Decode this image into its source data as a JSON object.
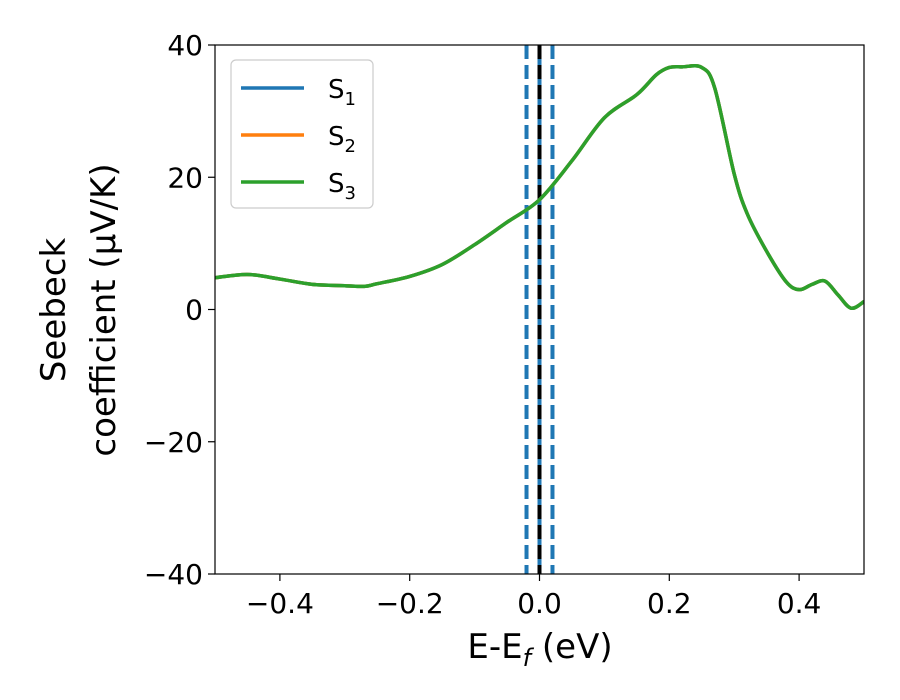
{
  "chart_data": {
    "type": "line",
    "xlabel_main": "E-E",
    "xlabel_sub": "f",
    "xlabel_unit": " (eV)",
    "ylabel_line1": "Seebeck",
    "ylabel_line2": "coefficient  (μV/K)",
    "xlim": [
      -0.5,
      0.5
    ],
    "ylim": [
      -40,
      40
    ],
    "x_ticks": [
      -0.4,
      -0.2,
      0.0,
      0.2,
      0.4
    ],
    "x_tick_labels": [
      "−0.4",
      "−0.2",
      "0.0",
      "0.2",
      "0.4"
    ],
    "y_ticks": [
      -40,
      -20,
      0,
      20,
      40
    ],
    "y_tick_labels": [
      "−40",
      "−20",
      "0",
      "20",
      "40"
    ],
    "grid": false,
    "legend_position": "top-left",
    "vertical_lines": [
      {
        "x": -0.02,
        "style": "dashed",
        "color": "#1f77b4"
      },
      {
        "x": 0.02,
        "style": "dashed",
        "color": "#1f77b4"
      },
      {
        "x": 0.0,
        "style": "solid",
        "color": "#1f77b4"
      },
      {
        "x": 0.0,
        "style": "dashed",
        "color": "#000000"
      }
    ],
    "series": [
      {
        "name_main": "S",
        "name_sub": "1",
        "color": "#1f77b4",
        "x": [
          -0.5,
          -0.45,
          -0.4,
          -0.35,
          -0.3,
          -0.27,
          -0.25,
          -0.2,
          -0.15,
          -0.1,
          -0.05,
          0.0,
          0.05,
          0.1,
          0.15,
          0.18,
          0.2,
          0.22,
          0.25,
          0.27,
          0.3,
          0.32,
          0.35,
          0.38,
          0.4,
          0.42,
          0.44,
          0.46,
          0.48,
          0.5
        ],
        "y": [
          4.8,
          5.3,
          4.6,
          3.8,
          3.6,
          3.5,
          3.9,
          5.0,
          6.8,
          9.8,
          13.2,
          16.6,
          22.5,
          29.0,
          32.5,
          35.5,
          36.6,
          36.7,
          36.6,
          33.5,
          20.5,
          14.5,
          8.8,
          4.2,
          3.0,
          3.8,
          4.3,
          2.2,
          0.2,
          1.2
        ]
      },
      {
        "name_main": "S",
        "name_sub": "2",
        "color": "#ff7f0e",
        "x": [
          -0.5,
          -0.45,
          -0.4,
          -0.35,
          -0.3,
          -0.27,
          -0.25,
          -0.2,
          -0.15,
          -0.1,
          -0.05,
          0.0,
          0.05,
          0.1,
          0.15,
          0.18,
          0.2,
          0.22,
          0.25,
          0.27,
          0.3,
          0.32,
          0.35,
          0.38,
          0.4,
          0.42,
          0.44,
          0.46,
          0.48,
          0.5
        ],
        "y": [
          4.8,
          5.3,
          4.6,
          3.8,
          3.6,
          3.5,
          3.9,
          5.0,
          6.8,
          9.8,
          13.2,
          16.6,
          22.5,
          29.0,
          32.5,
          35.5,
          36.6,
          36.7,
          36.6,
          33.5,
          20.5,
          14.5,
          8.8,
          4.2,
          3.0,
          3.8,
          4.3,
          2.2,
          0.2,
          1.2
        ]
      },
      {
        "name_main": "S",
        "name_sub": "3",
        "color": "#2ca02c",
        "x": [
          -0.5,
          -0.45,
          -0.4,
          -0.35,
          -0.3,
          -0.27,
          -0.25,
          -0.2,
          -0.15,
          -0.1,
          -0.05,
          0.0,
          0.05,
          0.1,
          0.15,
          0.18,
          0.2,
          0.22,
          0.25,
          0.27,
          0.3,
          0.32,
          0.35,
          0.38,
          0.4,
          0.42,
          0.44,
          0.46,
          0.48,
          0.5
        ],
        "y": [
          4.8,
          5.3,
          4.6,
          3.8,
          3.6,
          3.5,
          3.9,
          5.0,
          6.8,
          9.8,
          13.2,
          16.6,
          22.5,
          29.0,
          32.5,
          35.5,
          36.6,
          36.7,
          36.6,
          33.5,
          20.5,
          14.5,
          8.8,
          4.2,
          3.0,
          3.8,
          4.3,
          2.2,
          0.2,
          1.2
        ]
      }
    ]
  }
}
